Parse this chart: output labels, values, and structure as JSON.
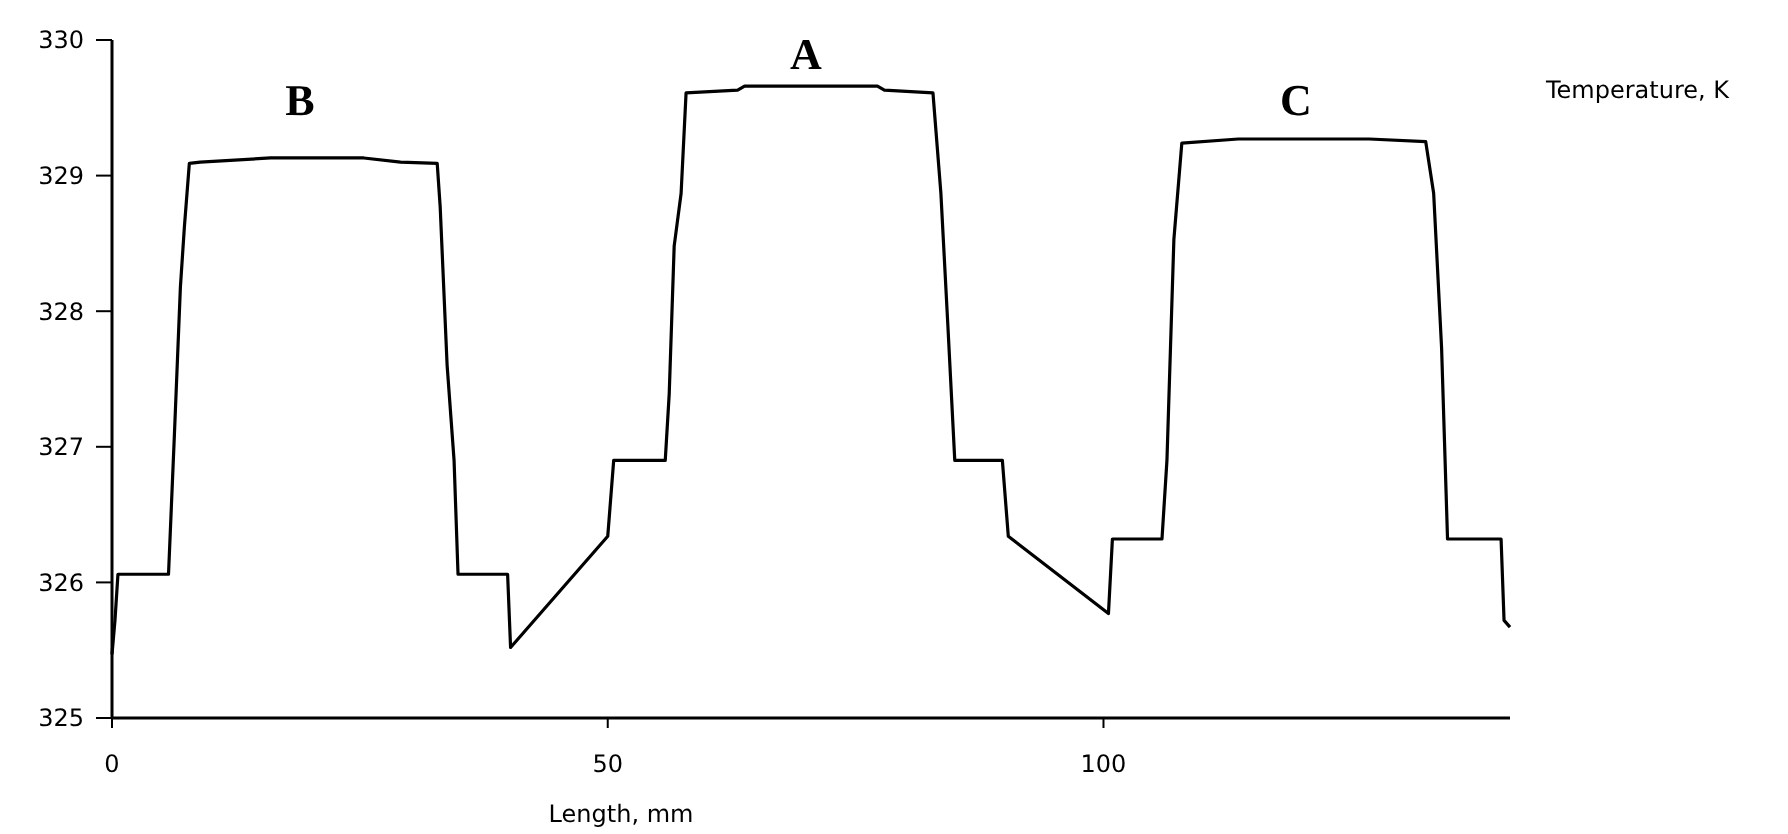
{
  "chart_data": {
    "type": "line",
    "xlabel": "Length, mm",
    "ylabel": "Temperature, K",
    "xlim": [
      0,
      141
    ],
    "ylim": [
      325,
      330
    ],
    "xticks": [
      0,
      50,
      100
    ],
    "yticks": [
      325,
      326,
      327,
      328,
      329,
      330
    ],
    "grid": false,
    "marker": "none",
    "line_style": "solid",
    "series": [
      {
        "color": "#000000",
        "x": [
          0,
          0.3,
          0.6,
          5.7,
          6.3,
          6.9,
          7.3,
          7.8,
          8.9,
          16,
          25.4,
          29.1,
          32.8,
          33.1,
          33.8,
          34.5,
          34.9,
          39.9,
          40.2,
          50,
          50.6,
          55.8,
          56.2,
          56.7,
          57.4,
          57.9,
          63.1,
          63.8,
          77.2,
          77.9,
          82.8,
          83.6,
          84.3,
          85,
          89.8,
          90.4,
          100.5,
          100.9,
          105.9,
          106.4,
          107.1,
          107.9,
          113.6,
          126.8,
          132.5,
          133.3,
          134.1,
          134.7,
          140.1,
          140.4,
          141
        ],
        "values": [
          325.47,
          325.72,
          326.06,
          326.06,
          327.1,
          328.18,
          328.62,
          329.09,
          329.1,
          329.13,
          329.13,
          329.1,
          329.09,
          328.77,
          327.6,
          326.9,
          326.06,
          326.06,
          325.52,
          326.34,
          326.9,
          326.9,
          327.39,
          328.48,
          328.87,
          329.61,
          329.63,
          329.66,
          329.66,
          329.63,
          329.61,
          328.87,
          327.9,
          326.9,
          326.9,
          326.34,
          325.77,
          326.32,
          326.32,
          326.9,
          328.53,
          329.24,
          329.27,
          329.27,
          329.25,
          328.87,
          327.73,
          326.32,
          326.32,
          325.72,
          325.67
        ]
      }
    ],
    "annotations": [
      "B",
      "A",
      "C"
    ]
  }
}
